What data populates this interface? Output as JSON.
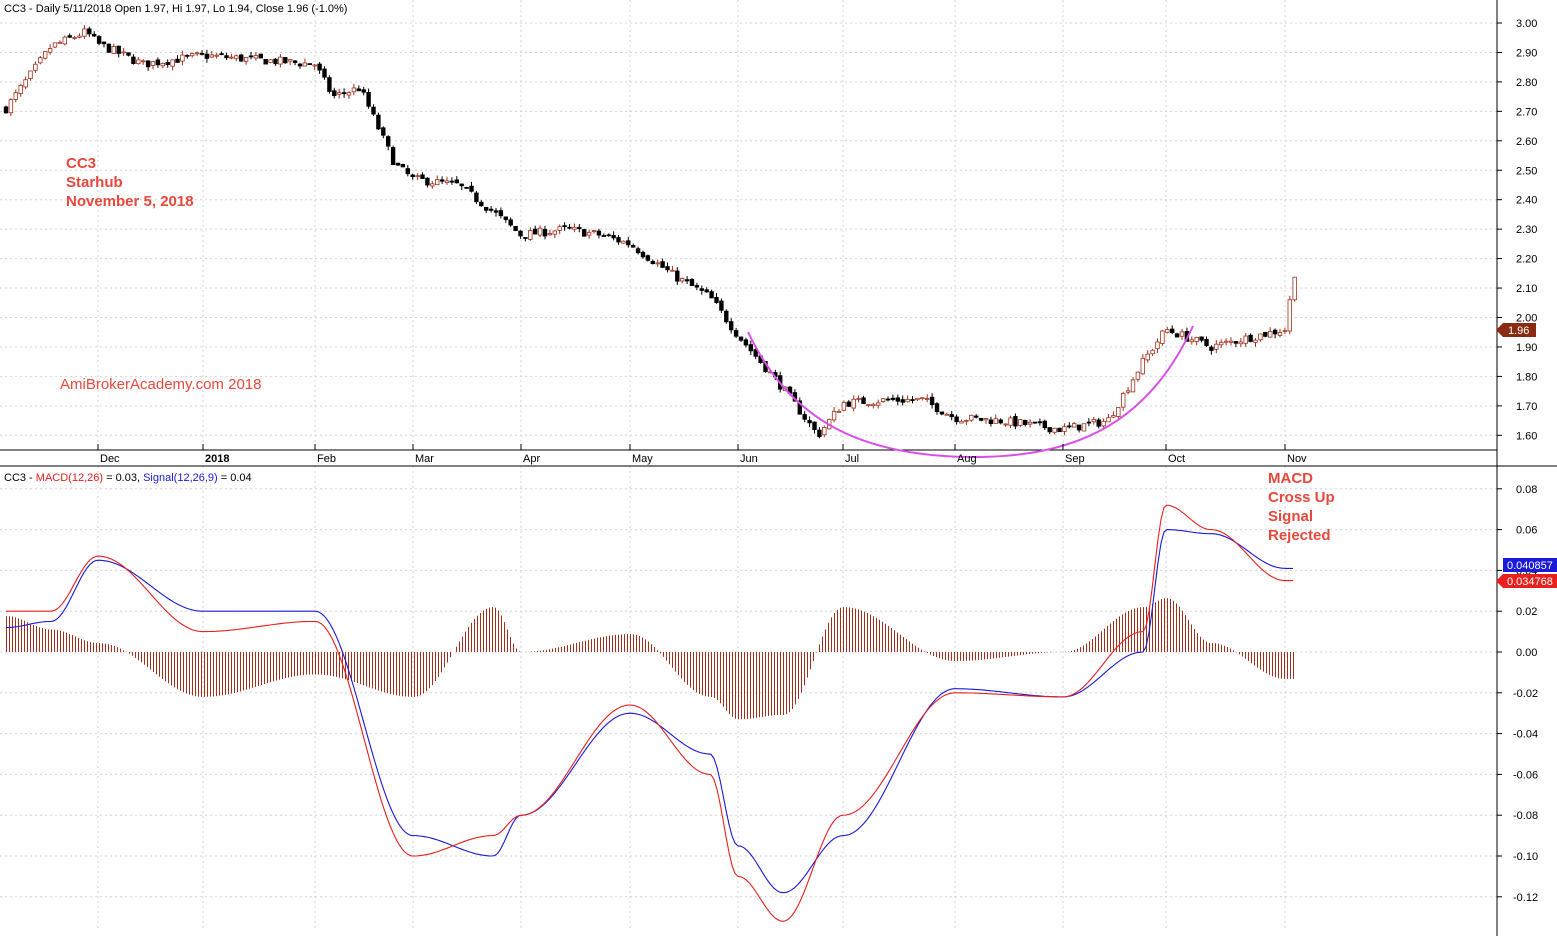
{
  "colors": {
    "up_candle": "#a0301c",
    "down_candle": "#000000",
    "macd_line": "#e8201e",
    "signal_line": "#1a1ad8",
    "histogram": "#a0301c",
    "grid": "#d4d4d4",
    "annotation": "#e8483c",
    "arc": "#d850e8",
    "price_tag": "#8a2a10",
    "signal_tag": "#1a1ad8",
    "macd_tag": "#e8201e"
  },
  "price_pane": {
    "header": {
      "symbol": "CC3",
      "text": "CC3 - Daily 5/11/2018 Open 1.97, Hi 1.97, Lo 1.94, Close 1.96 (-1.0%)"
    },
    "last_price_tag": "1.96",
    "y_ticks": [
      "3.00",
      "2.90",
      "2.80",
      "2.70",
      "2.60",
      "2.50",
      "2.40",
      "2.30",
      "2.20",
      "2.10",
      "2.00",
      "1.90",
      "1.80",
      "1.70",
      "1.60"
    ],
    "x_months": [
      "Dec",
      "2018",
      "Feb",
      "Mar",
      "Apr",
      "May",
      "Jun",
      "Jul",
      "Aug",
      "Sep",
      "Oct",
      "Nov"
    ],
    "annotations": {
      "symbol": "CC3",
      "name": "Starhub",
      "date": "November 5, 2018",
      "site": "AmiBrokerAcademy.com  2018"
    }
  },
  "macd_pane": {
    "header": {
      "prefix": "CC3 - ",
      "macd_label": "MACD(12,26)",
      "macd_value": " = 0.03, ",
      "signal_label": "Signal(12,26,9)",
      "signal_value": " = 0.04"
    },
    "signal_tag": "0.040857",
    "macd_tag": "0.034768",
    "y_ticks": [
      "0.08",
      "0.06",
      "0.04",
      "0.02",
      "0.00",
      "-0.02",
      "-0.04",
      "-0.06",
      "-0.08",
      "-0.10",
      "-0.12"
    ],
    "annotation": [
      "MACD",
      "Cross Up",
      "Signal",
      "Rejected"
    ]
  },
  "chart_data": [
    {
      "type": "candlestick",
      "title": "CC3 - Daily 5/11/2018 Open 1.97, Hi 1.97, Lo 1.94, Close 1.96 (-1.0%)",
      "ylim": [
        1.55,
        3.04
      ],
      "last_bar": {
        "date": "5/11/2018",
        "open": 1.97,
        "high": 1.97,
        "low": 1.94,
        "close": 1.96
      },
      "close_path": [
        [
          "Nov 2017 (start)",
          2.71
        ],
        [
          "mid Nov",
          2.85
        ],
        [
          "late Nov",
          2.86
        ],
        [
          "Dec",
          2.93
        ],
        [
          "mid Dec",
          2.86
        ],
        [
          "2018",
          2.89
        ],
        [
          "mid Jan",
          2.92
        ],
        [
          "late Jan",
          2.97
        ],
        [
          "Feb",
          2.86
        ],
        [
          "early Feb",
          2.75
        ],
        [
          "mid Feb",
          2.78
        ],
        [
          "late Feb",
          2.52
        ],
        [
          "Mar",
          2.47
        ],
        [
          "mid Mar",
          2.45
        ],
        [
          "late Mar",
          2.36
        ],
        [
          "Apr",
          2.28
        ],
        [
          "mid Apr",
          2.3
        ],
        [
          "late Apr",
          2.28
        ],
        [
          "May",
          2.25
        ],
        [
          "mid May",
          2.14
        ],
        [
          "late May",
          2.07
        ],
        [
          "Jun",
          1.94
        ],
        [
          "mid Jun",
          1.76
        ],
        [
          "late Jun",
          1.6
        ],
        [
          "Jul",
          1.71
        ],
        [
          "mid Jul",
          1.72
        ],
        [
          "late Jul",
          1.72
        ],
        [
          "Aug",
          1.66
        ],
        [
          "mid Aug",
          1.65
        ],
        [
          "Sep",
          1.62
        ],
        [
          "mid Sep",
          1.65
        ],
        [
          "late Sep",
          1.85
        ],
        [
          "Oct",
          1.96
        ],
        [
          "mid Oct",
          1.9
        ],
        [
          "late Oct",
          1.93
        ],
        [
          "Nov",
          1.96
        ]
      ]
    },
    {
      "type": "line",
      "title": "CC3 - MACD(12,26) = 0.03, Signal(12,26,9) = 0.04",
      "ylim": [
        -0.135,
        0.09
      ],
      "series": [
        {
          "name": "MACD(12,26)",
          "values": [
            [
              "Nov 2017 (start)",
              0.02
            ],
            [
              "Dec",
              0.047
            ],
            [
              "2018",
              0.01
            ],
            [
              "mid Jan",
              0.02
            ],
            [
              "Feb",
              0.015
            ],
            [
              "Mar",
              -0.1
            ],
            [
              "late Mar",
              -0.09
            ],
            [
              "Apr",
              -0.08
            ],
            [
              "May",
              -0.026
            ],
            [
              "late May",
              -0.06
            ],
            [
              "Jun",
              -0.11
            ],
            [
              "mid Jun",
              -0.132
            ],
            [
              "Jul",
              -0.08
            ],
            [
              "Aug",
              -0.02
            ],
            [
              "Sep",
              -0.022
            ],
            [
              "late Sep",
              0.01
            ],
            [
              "Oct",
              0.072
            ],
            [
              "mid Oct",
              0.06
            ],
            [
              "Nov",
              0.035
            ]
          ]
        },
        {
          "name": "Signal(12,26,9)",
          "values": [
            [
              "Nov 2017 (start)",
              0.012
            ],
            [
              "Dec",
              0.045
            ],
            [
              "2018",
              0.02
            ],
            [
              "mid Jan",
              0.015
            ],
            [
              "Feb",
              0.02
            ],
            [
              "Mar",
              -0.09
            ],
            [
              "late Mar",
              -0.1
            ],
            [
              "Apr",
              -0.08
            ],
            [
              "May",
              -0.03
            ],
            [
              "late May",
              -0.05
            ],
            [
              "Jun",
              -0.095
            ],
            [
              "mid Jun",
              -0.118
            ],
            [
              "Jul",
              -0.09
            ],
            [
              "Aug",
              -0.018
            ],
            [
              "Sep",
              -0.022
            ],
            [
              "late Sep",
              0.0
            ],
            [
              "Oct",
              0.06
            ],
            [
              "mid Oct",
              0.058
            ],
            [
              "Nov",
              0.041
            ]
          ]
        }
      ]
    }
  ]
}
